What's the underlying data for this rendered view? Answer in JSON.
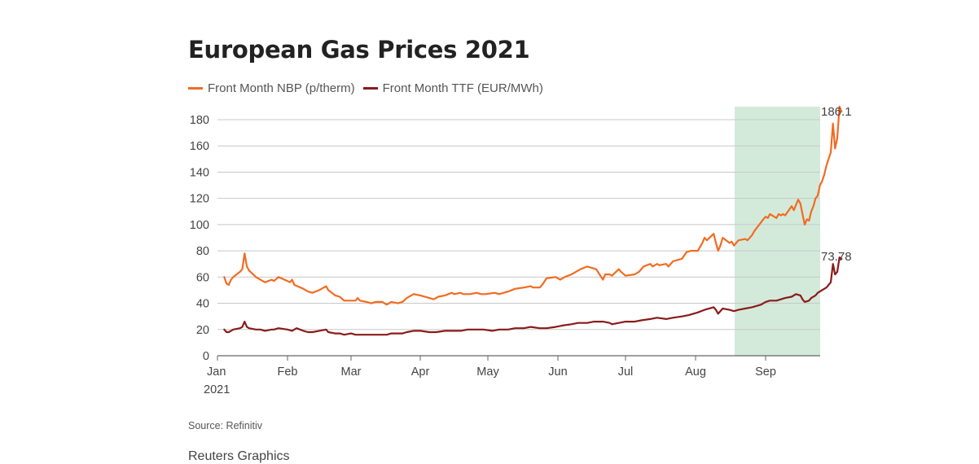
{
  "page": {
    "title": "European Gas Prices 2021",
    "source": "Source: Refinitiv",
    "credit": "Reuters Graphics"
  },
  "chart_data": {
    "type": "line",
    "title": "European Gas Prices 2021",
    "xlabel": "",
    "ylabel": "",
    "ylim": [
      0,
      190
    ],
    "yticks": [
      0,
      20,
      40,
      60,
      80,
      100,
      120,
      140,
      160,
      180
    ],
    "xlim": [
      "2021-01-01",
      "2021-09-30"
    ],
    "xticks": [
      {
        "date": "2021-01-01",
        "label": "Jan",
        "sublabel": "2021"
      },
      {
        "date": "2021-02-01",
        "label": "Feb"
      },
      {
        "date": "2021-03-01",
        "label": "Mar"
      },
      {
        "date": "2021-04-01",
        "label": "Apr"
      },
      {
        "date": "2021-05-01",
        "label": "May"
      },
      {
        "date": "2021-06-01",
        "label": "Jun"
      },
      {
        "date": "2021-07-01",
        "label": "Jul"
      },
      {
        "date": "2021-08-01",
        "label": "Aug"
      },
      {
        "date": "2021-09-01",
        "label": "Sep"
      }
    ],
    "grid": true,
    "legend_position": "top-left",
    "highlight": {
      "x_start": "2021-08-20",
      "x_end": "2021-09-30",
      "color": "#d3eadb"
    },
    "series": [
      {
        "name": "Front Month NBP (p/therm)",
        "color": "#f26b21",
        "end_label": "186.1",
        "points": [
          [
            "2021-01-04",
            60
          ],
          [
            "2021-01-05",
            55
          ],
          [
            "2021-01-06",
            54
          ],
          [
            "2021-01-07",
            58
          ],
          [
            "2021-01-08",
            60
          ],
          [
            "2021-01-11",
            64
          ],
          [
            "2021-01-12",
            66
          ],
          [
            "2021-01-13",
            78
          ],
          [
            "2021-01-14",
            68
          ],
          [
            "2021-01-15",
            65
          ],
          [
            "2021-01-18",
            60
          ],
          [
            "2021-01-20",
            58
          ],
          [
            "2021-01-22",
            56
          ],
          [
            "2021-01-25",
            58
          ],
          [
            "2021-01-26",
            57
          ],
          [
            "2021-01-28",
            60
          ],
          [
            "2021-02-01",
            57
          ],
          [
            "2021-02-02",
            56
          ],
          [
            "2021-02-03",
            58
          ],
          [
            "2021-02-04",
            54
          ],
          [
            "2021-02-08",
            51
          ],
          [
            "2021-02-10",
            49
          ],
          [
            "2021-02-12",
            48
          ],
          [
            "2021-02-15",
            50
          ],
          [
            "2021-02-18",
            53
          ],
          [
            "2021-02-19",
            50
          ],
          [
            "2021-02-22",
            46
          ],
          [
            "2021-02-24",
            45
          ],
          [
            "2021-02-26",
            42
          ],
          [
            "2021-03-01",
            42
          ],
          [
            "2021-03-03",
            42
          ],
          [
            "2021-03-04",
            44
          ],
          [
            "2021-03-05",
            42
          ],
          [
            "2021-03-08",
            41
          ],
          [
            "2021-03-10",
            40
          ],
          [
            "2021-03-12",
            41
          ],
          [
            "2021-03-15",
            41
          ],
          [
            "2021-03-17",
            39
          ],
          [
            "2021-03-19",
            41
          ],
          [
            "2021-03-22",
            40
          ],
          [
            "2021-03-24",
            41
          ],
          [
            "2021-03-26",
            44
          ],
          [
            "2021-03-29",
            47
          ],
          [
            "2021-04-01",
            46
          ],
          [
            "2021-04-05",
            44
          ],
          [
            "2021-04-07",
            43
          ],
          [
            "2021-04-09",
            45
          ],
          [
            "2021-04-12",
            46
          ],
          [
            "2021-04-15",
            48
          ],
          [
            "2021-04-16",
            47
          ],
          [
            "2021-04-19",
            48
          ],
          [
            "2021-04-20",
            47
          ],
          [
            "2021-04-23",
            47
          ],
          [
            "2021-04-26",
            48
          ],
          [
            "2021-04-28",
            47
          ],
          [
            "2021-04-30",
            47
          ],
          [
            "2021-05-04",
            48
          ],
          [
            "2021-05-06",
            47
          ],
          [
            "2021-05-10",
            49
          ],
          [
            "2021-05-13",
            51
          ],
          [
            "2021-05-17",
            52
          ],
          [
            "2021-05-20",
            53
          ],
          [
            "2021-05-21",
            52
          ],
          [
            "2021-05-24",
            52
          ],
          [
            "2021-05-25",
            54
          ],
          [
            "2021-05-27",
            59
          ],
          [
            "2021-05-31",
            60
          ],
          [
            "2021-06-02",
            58
          ],
          [
            "2021-06-04",
            60
          ],
          [
            "2021-06-07",
            62
          ],
          [
            "2021-06-09",
            64
          ],
          [
            "2021-06-11",
            66
          ],
          [
            "2021-06-14",
            68
          ],
          [
            "2021-06-16",
            67
          ],
          [
            "2021-06-18",
            66
          ],
          [
            "2021-06-21",
            58
          ],
          [
            "2021-06-22",
            62
          ],
          [
            "2021-06-24",
            62
          ],
          [
            "2021-06-25",
            61
          ],
          [
            "2021-06-28",
            66
          ],
          [
            "2021-06-29",
            64
          ],
          [
            "2021-07-01",
            61
          ],
          [
            "2021-07-05",
            62
          ],
          [
            "2021-07-07",
            64
          ],
          [
            "2021-07-09",
            68
          ],
          [
            "2021-07-12",
            70
          ],
          [
            "2021-07-13",
            68
          ],
          [
            "2021-07-15",
            70
          ],
          [
            "2021-07-16",
            69
          ],
          [
            "2021-07-19",
            70
          ],
          [
            "2021-07-20",
            68
          ],
          [
            "2021-07-22",
            72
          ],
          [
            "2021-07-26",
            74
          ],
          [
            "2021-07-28",
            79
          ],
          [
            "2021-07-30",
            80
          ],
          [
            "2021-08-02",
            80
          ],
          [
            "2021-08-04",
            86
          ],
          [
            "2021-08-05",
            90
          ],
          [
            "2021-08-06",
            88
          ],
          [
            "2021-08-09",
            93
          ],
          [
            "2021-08-10",
            86
          ],
          [
            "2021-08-11",
            80
          ],
          [
            "2021-08-12",
            84
          ],
          [
            "2021-08-13",
            90
          ],
          [
            "2021-08-16",
            86
          ],
          [
            "2021-08-17",
            87
          ],
          [
            "2021-08-18",
            84
          ],
          [
            "2021-08-19",
            86
          ],
          [
            "2021-08-20",
            88
          ],
          [
            "2021-08-23",
            89
          ],
          [
            "2021-08-24",
            88
          ],
          [
            "2021-08-26",
            92
          ],
          [
            "2021-08-27",
            95
          ],
          [
            "2021-08-31",
            104
          ],
          [
            "2021-09-01",
            106
          ],
          [
            "2021-09-02",
            105
          ],
          [
            "2021-09-03",
            108
          ],
          [
            "2021-09-06",
            105
          ],
          [
            "2021-09-07",
            108
          ],
          [
            "2021-09-08",
            107
          ],
          [
            "2021-09-09",
            108
          ],
          [
            "2021-09-10",
            107
          ],
          [
            "2021-09-13",
            114
          ],
          [
            "2021-09-14",
            111
          ],
          [
            "2021-09-15",
            115
          ],
          [
            "2021-09-16",
            119
          ],
          [
            "2021-09-17",
            116
          ],
          [
            "2021-09-18",
            108
          ],
          [
            "2021-09-19",
            100
          ],
          [
            "2021-09-20",
            104
          ],
          [
            "2021-09-21",
            103
          ],
          [
            "2021-09-22",
            110
          ],
          [
            "2021-09-23",
            114
          ],
          [
            "2021-09-24",
            120
          ],
          [
            "2021-09-25",
            122
          ],
          [
            "2021-09-26",
            130
          ],
          [
            "2021-09-27",
            133
          ],
          [
            "2021-09-28",
            138
          ],
          [
            "2021-09-29",
            145
          ],
          [
            "2021-09-30",
            150
          ],
          [
            "2021-10-01",
            155
          ],
          [
            "2021-10-02",
            177
          ],
          [
            "2021-10-03",
            158
          ],
          [
            "2021-10-04",
            166
          ],
          [
            "2021-10-05",
            190
          ],
          [
            "2021-10-06",
            186.1
          ]
        ]
      },
      {
        "name": "Front Month TTF (EUR/MWh)",
        "color": "#8b1a1a",
        "end_label": "73.78",
        "points": [
          [
            "2021-01-04",
            20
          ],
          [
            "2021-01-05",
            18
          ],
          [
            "2021-01-06",
            18
          ],
          [
            "2021-01-07",
            19
          ],
          [
            "2021-01-08",
            20
          ],
          [
            "2021-01-11",
            21
          ],
          [
            "2021-01-12",
            22
          ],
          [
            "2021-01-13",
            26
          ],
          [
            "2021-01-14",
            22
          ],
          [
            "2021-01-15",
            21
          ],
          [
            "2021-01-18",
            20
          ],
          [
            "2021-01-20",
            20
          ],
          [
            "2021-01-22",
            19
          ],
          [
            "2021-01-25",
            20
          ],
          [
            "2021-01-26",
            20
          ],
          [
            "2021-01-28",
            21
          ],
          [
            "2021-02-01",
            20
          ],
          [
            "2021-02-03",
            19
          ],
          [
            "2021-02-05",
            21
          ],
          [
            "2021-02-08",
            19
          ],
          [
            "2021-02-10",
            18
          ],
          [
            "2021-02-12",
            18
          ],
          [
            "2021-02-15",
            19
          ],
          [
            "2021-02-18",
            20
          ],
          [
            "2021-02-19",
            18
          ],
          [
            "2021-02-22",
            17
          ],
          [
            "2021-02-24",
            17
          ],
          [
            "2021-02-26",
            16
          ],
          [
            "2021-03-01",
            17
          ],
          [
            "2021-03-03",
            16
          ],
          [
            "2021-03-05",
            16
          ],
          [
            "2021-03-08",
            16
          ],
          [
            "2021-03-10",
            16
          ],
          [
            "2021-03-12",
            16
          ],
          [
            "2021-03-15",
            16
          ],
          [
            "2021-03-17",
            16
          ],
          [
            "2021-03-19",
            17
          ],
          [
            "2021-03-22",
            17
          ],
          [
            "2021-03-24",
            17
          ],
          [
            "2021-03-26",
            18
          ],
          [
            "2021-03-29",
            19
          ],
          [
            "2021-04-01",
            19
          ],
          [
            "2021-04-05",
            18
          ],
          [
            "2021-04-08",
            18
          ],
          [
            "2021-04-12",
            19
          ],
          [
            "2021-04-15",
            19
          ],
          [
            "2021-04-19",
            19
          ],
          [
            "2021-04-22",
            20
          ],
          [
            "2021-04-26",
            20
          ],
          [
            "2021-04-29",
            20
          ],
          [
            "2021-05-03",
            19
          ],
          [
            "2021-05-06",
            20
          ],
          [
            "2021-05-10",
            20
          ],
          [
            "2021-05-13",
            21
          ],
          [
            "2021-05-17",
            21
          ],
          [
            "2021-05-20",
            22
          ],
          [
            "2021-05-24",
            21
          ],
          [
            "2021-05-27",
            21
          ],
          [
            "2021-05-31",
            22
          ],
          [
            "2021-06-03",
            23
          ],
          [
            "2021-06-07",
            24
          ],
          [
            "2021-06-10",
            25
          ],
          [
            "2021-06-14",
            25
          ],
          [
            "2021-06-17",
            26
          ],
          [
            "2021-06-21",
            26
          ],
          [
            "2021-06-24",
            25
          ],
          [
            "2021-06-25",
            24
          ],
          [
            "2021-06-28",
            25
          ],
          [
            "2021-07-01",
            26
          ],
          [
            "2021-07-05",
            26
          ],
          [
            "2021-07-08",
            27
          ],
          [
            "2021-07-12",
            28
          ],
          [
            "2021-07-15",
            29
          ],
          [
            "2021-07-19",
            28
          ],
          [
            "2021-07-22",
            29
          ],
          [
            "2021-07-26",
            30
          ],
          [
            "2021-07-29",
            31
          ],
          [
            "2021-08-02",
            33
          ],
          [
            "2021-08-05",
            35
          ],
          [
            "2021-08-09",
            37
          ],
          [
            "2021-08-10",
            35
          ],
          [
            "2021-08-11",
            32
          ],
          [
            "2021-08-12",
            34
          ],
          [
            "2021-08-13",
            36
          ],
          [
            "2021-08-16",
            35
          ],
          [
            "2021-08-18",
            34
          ],
          [
            "2021-08-20",
            35
          ],
          [
            "2021-08-23",
            36
          ],
          [
            "2021-08-26",
            37
          ],
          [
            "2021-08-30",
            39
          ],
          [
            "2021-09-01",
            41
          ],
          [
            "2021-09-03",
            42
          ],
          [
            "2021-09-06",
            42
          ],
          [
            "2021-09-08",
            43
          ],
          [
            "2021-09-10",
            44
          ],
          [
            "2021-09-13",
            45
          ],
          [
            "2021-09-15",
            47
          ],
          [
            "2021-09-17",
            46
          ],
          [
            "2021-09-18",
            43
          ],
          [
            "2021-09-19",
            41
          ],
          [
            "2021-09-21",
            42
          ],
          [
            "2021-09-22",
            44
          ],
          [
            "2021-09-24",
            46
          ],
          [
            "2021-09-25",
            48
          ],
          [
            "2021-09-27",
            50
          ],
          [
            "2021-09-29",
            52
          ],
          [
            "2021-10-01",
            56
          ],
          [
            "2021-10-02",
            70
          ],
          [
            "2021-10-03",
            62
          ],
          [
            "2021-10-04",
            64
          ],
          [
            "2021-10-05",
            75
          ],
          [
            "2021-10-06",
            73.78
          ]
        ]
      }
    ]
  }
}
